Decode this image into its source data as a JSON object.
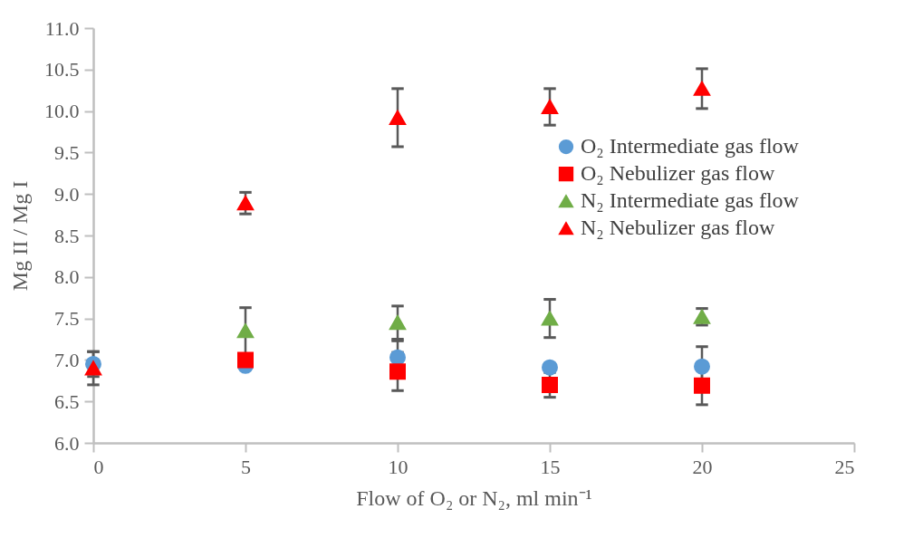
{
  "chart_data": {
    "type": "scatter",
    "xlabel": "Flow of O₂ or N₂, ml min⁻¹",
    "ylabel": "Mg II / Mg I",
    "x": [
      0,
      5,
      10,
      15,
      20
    ],
    "xlim": [
      0,
      25
    ],
    "xticks": [
      0,
      5,
      10,
      15,
      20,
      25
    ],
    "ylim": [
      6,
      11
    ],
    "yticks": [
      {
        "value": 6,
        "label": "6.0"
      },
      {
        "value": 6.5,
        "label": "6.5"
      },
      {
        "value": 7,
        "label": "7.0"
      },
      {
        "value": 7.5,
        "label": "7.5"
      },
      {
        "value": 8,
        "label": "8.0"
      },
      {
        "value": 8.5,
        "label": "8.5"
      },
      {
        "value": 9,
        "label": "9.0"
      },
      {
        "value": 9.5,
        "label": "9.5"
      },
      {
        "value": 10,
        "label": "10.0"
      },
      {
        "value": 10.5,
        "label": "10.5"
      },
      {
        "value": 11,
        "label": "11.0"
      }
    ],
    "grid": false,
    "legend": "right",
    "series": [
      {
        "name": "O₂ Intermediate gas flow",
        "color": "#5b9bd5",
        "marker": "circle",
        "values": [
          6.95,
          6.93,
          7.03,
          6.91,
          6.92
        ],
        "errors": [
          0.15,
          null,
          0.2,
          null,
          0.24
        ]
      },
      {
        "name": "O₂ Nebulizer gas flow",
        "color": "#ff0000",
        "marker": "square",
        "values": [
          null,
          7.0,
          6.86,
          6.7,
          6.69
        ],
        "errors": [
          null,
          null,
          0.23,
          0.15,
          0.23
        ]
      },
      {
        "name": "N₂ Intermediate gas flow",
        "color": "#70ad47",
        "marker": "triangle",
        "values": [
          null,
          7.35,
          7.45,
          7.5,
          7.52
        ],
        "errors": [
          null,
          0.28,
          0.2,
          0.23,
          0.1
        ]
      },
      {
        "name": "N₂ Nebulizer gas flow",
        "color": "#ff0000",
        "marker": "triangle",
        "values": [
          6.9,
          8.89,
          9.92,
          10.05,
          10.27
        ],
        "errors": [
          0.2,
          0.13,
          0.35,
          0.22,
          0.24
        ]
      }
    ]
  }
}
